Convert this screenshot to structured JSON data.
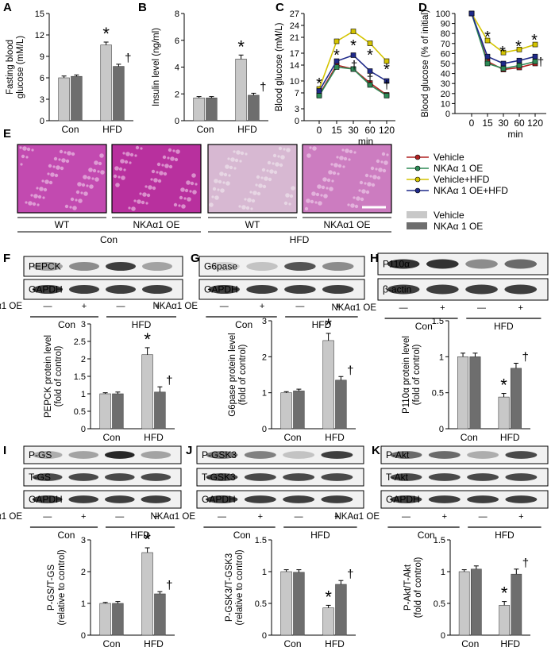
{
  "labels": {
    "con": "Con",
    "hfd": "HFD",
    "wt": "WT",
    "oe": "NKAα1 OE",
    "oe_row": "NKAα1 OE",
    "minus": "—",
    "plus": "+",
    "min": "min",
    "star": "*",
    "dagger": "†"
  },
  "legend_lines": [
    {
      "name": "Vehicle",
      "color": "#b22222"
    },
    {
      "name": "NKAα 1 OE",
      "color": "#2e8b57"
    },
    {
      "name": "Vehicle+HFD",
      "color": "#d4c400"
    },
    {
      "name": "NKAα 1 OE+HFD",
      "color": "#1f2a8a"
    }
  ],
  "legend_bars": [
    {
      "name": "Vehicle",
      "color": "#c8c8c8"
    },
    {
      "name": "NKAα 1 OE",
      "color": "#6e6e6e"
    }
  ],
  "panel_E": {
    "letter": "E",
    "genotype_labels": [
      "WT",
      "NKAα1 OE",
      "WT",
      "NKAα1 OE"
    ],
    "group_labels": [
      "Con",
      "HFD"
    ]
  },
  "blots": [
    {
      "letter": "F",
      "rows": [
        "PEPCK",
        "GAPDH"
      ]
    },
    {
      "letter": "G",
      "rows": [
        "G6pase",
        "GAPDH"
      ]
    },
    {
      "letter": "H",
      "rows": [
        "P110α",
        "β-actin"
      ]
    },
    {
      "letter": "I",
      "rows": [
        "P-GS",
        "T-GS",
        "GAPDH"
      ]
    },
    {
      "letter": "J",
      "rows": [
        "P-GSK3",
        "T-GSK3",
        "GAPDH"
      ]
    },
    {
      "letter": "K",
      "rows": [
        "P-Akt",
        "T-Akt",
        "GAPDH"
      ]
    }
  ],
  "chart_data": [
    {
      "panel": "A",
      "type": "bar",
      "ylabel": "Fasting blood glucose (mM/L)",
      "ylim": [
        0,
        15
      ],
      "yticks": [
        0,
        3,
        6,
        9,
        12,
        15
      ],
      "categories": [
        "Con",
        "HFD"
      ],
      "series": [
        {
          "name": "Vehicle",
          "values": [
            6.0,
            10.6
          ],
          "err": [
            0.25,
            0.4
          ]
        },
        {
          "name": "NKAα 1 OE",
          "values": [
            6.2,
            7.6
          ],
          "err": [
            0.2,
            0.3
          ]
        }
      ],
      "annotations": [
        "*",
        "†"
      ]
    },
    {
      "panel": "B",
      "type": "bar",
      "ylabel": "Insulin level (ng/ml)",
      "ylim": [
        0,
        8
      ],
      "yticks": [
        0,
        2,
        4,
        6,
        8
      ],
      "categories": [
        "Con",
        "HFD"
      ],
      "series": [
        {
          "name": "Vehicle",
          "values": [
            1.7,
            4.6
          ],
          "err": [
            0.1,
            0.3
          ]
        },
        {
          "name": "NKAα 1 OE",
          "values": [
            1.7,
            1.9
          ],
          "err": [
            0.1,
            0.15
          ]
        }
      ],
      "annotations": [
        "*",
        "†"
      ]
    },
    {
      "panel": "C",
      "type": "line",
      "ylabel": "Blood glucose (mM/L)",
      "xlabel": "min",
      "ylim": [
        0,
        27
      ],
      "yticks": [
        0,
        3,
        7,
        10,
        14,
        17,
        21,
        24,
        27
      ],
      "x": [
        0,
        15,
        30,
        60,
        120
      ],
      "series": [
        {
          "name": "Vehicle",
          "values": [
            6.5,
            14.0,
            13.0,
            9.5,
            6.5
          ]
        },
        {
          "name": "NKAα 1 OE",
          "values": [
            6.3,
            13.5,
            13.0,
            9.0,
            6.3
          ]
        },
        {
          "name": "Vehicle+HFD",
          "values": [
            8.0,
            20.0,
            22.5,
            19.5,
            15.0
          ]
        },
        {
          "name": "NKAα 1 OE+HFD",
          "values": [
            7.5,
            15.0,
            16.5,
            12.5,
            10.0
          ]
        }
      ],
      "annotations": [
        "*",
        "*",
        "*",
        "*",
        "*",
        "†",
        "†",
        "†",
        "†"
      ]
    },
    {
      "panel": "D",
      "type": "line",
      "ylabel": "Blood glucose (% of initial)",
      "xlabel": "min",
      "ylim": [
        0,
        100
      ],
      "yticks": [
        0,
        10,
        20,
        30,
        40,
        50,
        60,
        70,
        80,
        90,
        100
      ],
      "x": [
        0,
        15,
        30,
        60,
        120
      ],
      "series": [
        {
          "name": "Vehicle",
          "values": [
            100,
            52,
            44,
            46,
            50
          ]
        },
        {
          "name": "NKAα 1 OE",
          "values": [
            100,
            50,
            45,
            48,
            52
          ]
        },
        {
          "name": "Vehicle+HFD",
          "values": [
            100,
            73,
            61,
            64,
            69
          ]
        },
        {
          "name": "NKAα 1 OE+HFD",
          "values": [
            100,
            57,
            50,
            53,
            57
          ]
        }
      ],
      "annotations": [
        "*",
        "*",
        "*",
        "*",
        "†"
      ]
    },
    {
      "panel": "F",
      "type": "bar",
      "ylabel": "PEPCK protein level (fold of control)",
      "ylim": [
        0,
        3.0
      ],
      "yticks": [
        0,
        0.5,
        1.0,
        1.5,
        2.0,
        2.5,
        3.0
      ],
      "categories": [
        "Con",
        "HFD"
      ],
      "series": [
        {
          "name": "Vehicle",
          "values": [
            1.0,
            2.12
          ],
          "err": [
            0.03,
            0.2
          ]
        },
        {
          "name": "NKAα 1 OE",
          "values": [
            1.0,
            1.05
          ],
          "err": [
            0.05,
            0.15
          ]
        }
      ],
      "annotations": [
        "*",
        "†"
      ]
    },
    {
      "panel": "G",
      "type": "bar",
      "ylabel": "G6pase protein level (fold of control)",
      "ylim": [
        0,
        3
      ],
      "yticks": [
        0,
        1,
        2,
        3
      ],
      "categories": [
        "Con",
        "HFD"
      ],
      "series": [
        {
          "name": "Vehicle",
          "values": [
            1.0,
            2.45
          ],
          "err": [
            0.03,
            0.2
          ]
        },
        {
          "name": "NKAα 1 OE",
          "values": [
            1.05,
            1.35
          ],
          "err": [
            0.05,
            0.1
          ]
        }
      ],
      "annotations": [
        "*",
        "†"
      ]
    },
    {
      "panel": "H",
      "type": "bar",
      "ylabel": "P110α protein level (fold of control)",
      "ylim": [
        0,
        1.5
      ],
      "yticks": [
        0,
        0.5,
        1.0,
        1.5
      ],
      "categories": [
        "Con",
        "HFD"
      ],
      "series": [
        {
          "name": "Vehicle",
          "values": [
            1.0,
            0.44
          ],
          "err": [
            0.05,
            0.05
          ]
        },
        {
          "name": "NKAα 1 OE",
          "values": [
            1.0,
            0.84
          ],
          "err": [
            0.05,
            0.07
          ]
        }
      ],
      "annotations": [
        "*",
        "†"
      ]
    },
    {
      "panel": "I",
      "type": "bar",
      "ylabel": "P-GS/T-GS (relative to control)",
      "ylim": [
        0,
        3
      ],
      "yticks": [
        0,
        1,
        2,
        3
      ],
      "categories": [
        "Con",
        "HFD"
      ],
      "series": [
        {
          "name": "Vehicle",
          "values": [
            1.0,
            2.6
          ],
          "err": [
            0.03,
            0.15
          ]
        },
        {
          "name": "NKAα 1 OE",
          "values": [
            1.0,
            1.3
          ],
          "err": [
            0.06,
            0.07
          ]
        }
      ],
      "annotations": [
        "*",
        "†"
      ]
    },
    {
      "panel": "J",
      "type": "bar",
      "ylabel": "P-GSK3/T-GSK3 (relative to control)",
      "ylim": [
        0,
        1.5
      ],
      "yticks": [
        0,
        0.5,
        1.0,
        1.5
      ],
      "categories": [
        "Con",
        "HFD"
      ],
      "series": [
        {
          "name": "Vehicle",
          "values": [
            1.0,
            0.43
          ],
          "err": [
            0.03,
            0.04
          ]
        },
        {
          "name": "NKAα 1 OE",
          "values": [
            0.99,
            0.8
          ],
          "err": [
            0.04,
            0.06
          ]
        }
      ],
      "annotations": [
        "*",
        "†"
      ]
    },
    {
      "panel": "K",
      "type": "bar",
      "ylabel": "P-Akt/T-Akt (fold of control)",
      "ylim": [
        0,
        1.5
      ],
      "yticks": [
        0,
        0.5,
        1.0,
        1.5
      ],
      "categories": [
        "Con",
        "HFD"
      ],
      "series": [
        {
          "name": "Vehicle",
          "values": [
            1.0,
            0.47
          ],
          "err": [
            0.03,
            0.06
          ]
        },
        {
          "name": "NKAα 1 OE",
          "values": [
            1.04,
            0.96
          ],
          "err": [
            0.05,
            0.08
          ]
        }
      ],
      "annotations": [
        "*",
        "†"
      ]
    }
  ]
}
